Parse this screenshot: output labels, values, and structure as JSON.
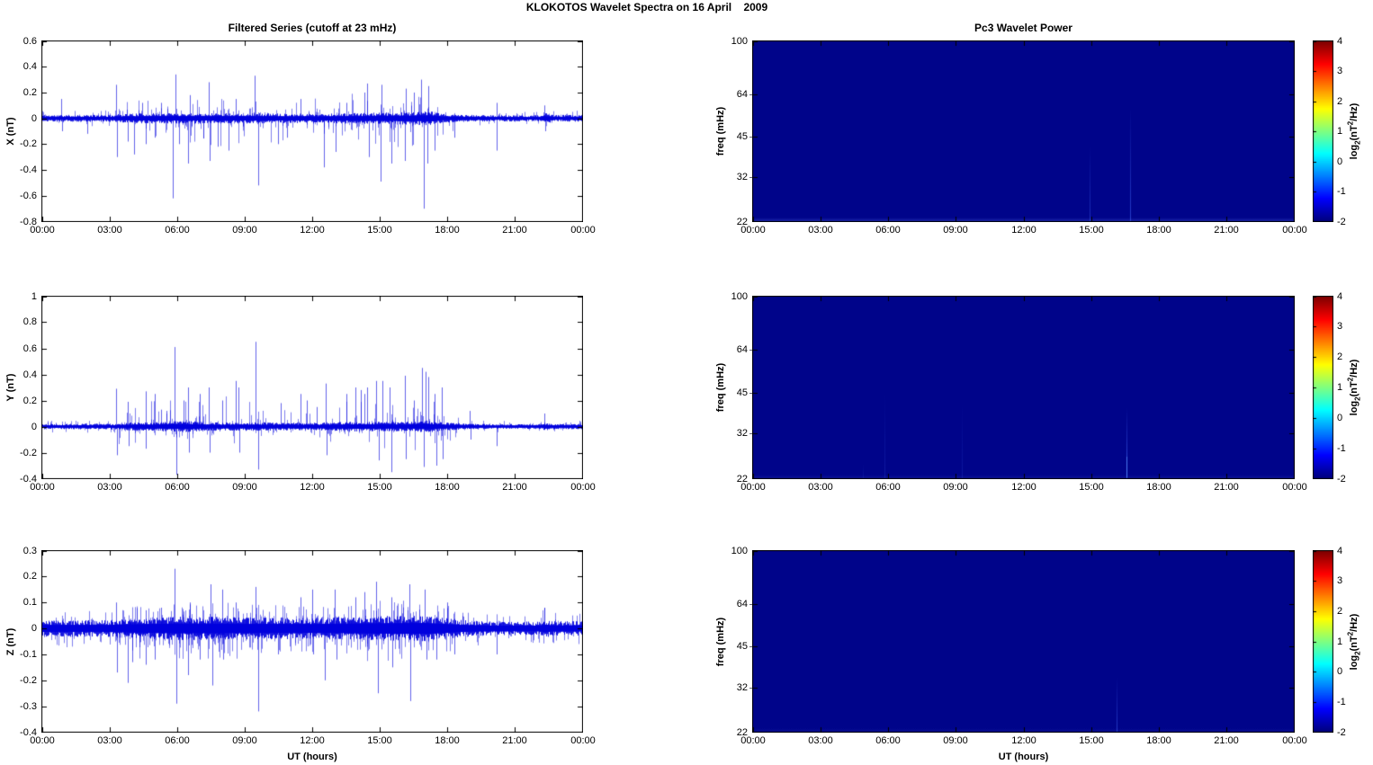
{
  "figure_title": "KLOKOTOS Wavelet Spectra on 16 April    2009",
  "colors": {
    "series_line": "#0000dd",
    "spectrogram_bg": "#00048a",
    "event_line_rgb": [
      70,
      110,
      255
    ],
    "axis": "#000000",
    "text": "#000000",
    "colormap": "jet"
  },
  "time_axis": {
    "ticks": [
      "00:00",
      "03:00",
      "06:00",
      "09:00",
      "12:00",
      "15:00",
      "18:00",
      "21:00",
      "00:00"
    ],
    "hours_span": [
      0,
      24
    ],
    "xlabel": "UT (hours)"
  },
  "activity_profile": [
    [
      0,
      0.02
    ],
    [
      0.7,
      0.12
    ],
    [
      1,
      0.04
    ],
    [
      2,
      0.05
    ],
    [
      3,
      0.3
    ],
    [
      3.6,
      0.8
    ],
    [
      4,
      0.85
    ],
    [
      5,
      0.9
    ],
    [
      6,
      1
    ],
    [
      8,
      0.95
    ],
    [
      10,
      0.65
    ],
    [
      11,
      0.55
    ],
    [
      12,
      0.65
    ],
    [
      13,
      0.8
    ],
    [
      14,
      1
    ],
    [
      16,
      1
    ],
    [
      17,
      1
    ],
    [
      17.6,
      0.65
    ],
    [
      18,
      0.4
    ],
    [
      18.7,
      0.22
    ],
    [
      19,
      0.08
    ],
    [
      20,
      0.05
    ],
    [
      20.3,
      0.08
    ],
    [
      21,
      0.02
    ],
    [
      22,
      0.03
    ],
    [
      22.3,
      0.25
    ],
    [
      22.6,
      0.05
    ],
    [
      23,
      0.02
    ],
    [
      24,
      0.02
    ]
  ],
  "colorbar": {
    "ticks": [
      4,
      3,
      2,
      1,
      0,
      -1,
      -2
    ],
    "clim": [
      -2,
      4
    ],
    "label_parts": {
      "pre": "log",
      "sub": "2",
      "mid": "(nT",
      "sup": "2",
      "post": "/Hz)"
    }
  },
  "chart_data": [
    {
      "id": "x-filtered",
      "type": "line",
      "panel": "left",
      "row": 0,
      "title": "Filtered Series (cutoff at 23 mHz)",
      "ylabel": "X (nT)",
      "ylim": [
        -0.8,
        0.6
      ],
      "yticks": [
        0.6,
        0.4,
        0.2,
        0,
        -0.2,
        -0.4,
        -0.6,
        -0.8
      ],
      "noise_envelope": [
        [
          0,
          0.022
        ],
        [
          3,
          0.023
        ],
        [
          3.6,
          0.03
        ],
        [
          5,
          0.034
        ],
        [
          9,
          0.034
        ],
        [
          12,
          0.03
        ],
        [
          14,
          0.034
        ],
        [
          16,
          0.04
        ],
        [
          17.3,
          0.045
        ],
        [
          17.8,
          0.028
        ],
        [
          19,
          0.022
        ],
        [
          21,
          0.02
        ],
        [
          22.1,
          0.02
        ],
        [
          22.35,
          0.034
        ],
        [
          22.7,
          0.022
        ],
        [
          24,
          0.022
        ]
      ],
      "spikes": [
        [
          0.85,
          0.15
        ],
        [
          0.9,
          -0.1
        ],
        [
          2.0,
          -0.12
        ],
        [
          3.3,
          0.26
        ],
        [
          3.34,
          -0.3
        ],
        [
          3.8,
          -0.18
        ],
        [
          4.1,
          -0.28
        ],
        [
          4.45,
          0.12
        ],
        [
          4.6,
          -0.2
        ],
        [
          5.0,
          -0.15
        ],
        [
          5.3,
          0.12
        ],
        [
          5.82,
          -0.62
        ],
        [
          5.95,
          0.34
        ],
        [
          6.1,
          -0.2
        ],
        [
          6.5,
          -0.35
        ],
        [
          6.55,
          0.18
        ],
        [
          7.4,
          0.28
        ],
        [
          7.46,
          -0.33
        ],
        [
          7.8,
          -0.22
        ],
        [
          8.3,
          -0.25
        ],
        [
          8.6,
          0.15
        ],
        [
          9.45,
          0.33
        ],
        [
          9.6,
          -0.52
        ],
        [
          10.5,
          -0.2
        ],
        [
          10.9,
          -0.15
        ],
        [
          11.5,
          0.15
        ],
        [
          12.5,
          -0.38
        ],
        [
          13.05,
          -0.26
        ],
        [
          13.5,
          0.12
        ],
        [
          14.3,
          0.2
        ],
        [
          14.45,
          0.27
        ],
        [
          14.52,
          -0.3
        ],
        [
          15.03,
          -0.49
        ],
        [
          15.06,
          0.26
        ],
        [
          15.5,
          -0.35
        ],
        [
          16.1,
          -0.33
        ],
        [
          16.16,
          0.23
        ],
        [
          16.5,
          0.2
        ],
        [
          16.85,
          0.3
        ],
        [
          16.95,
          -0.7
        ],
        [
          17.1,
          -0.35
        ],
        [
          17.16,
          0.25
        ],
        [
          17.45,
          -0.25
        ],
        [
          18.3,
          -0.15
        ],
        [
          20.17,
          -0.25
        ],
        [
          20.2,
          0.12
        ],
        [
          22.3,
          0.1
        ],
        [
          22.36,
          -0.1
        ]
      ],
      "minor_spikes": {
        "count": 210,
        "max": 0.2,
        "neg_bias": 0.55,
        "neg_scale": 1.2,
        "whisker": 0.22
      },
      "seed": 11
    },
    {
      "id": "y-filtered",
      "type": "line",
      "panel": "left",
      "row": 1,
      "ylabel": "Y (nT)",
      "ylim": [
        -0.4,
        1
      ],
      "yticks": [
        1,
        0.8,
        0.6,
        0.4,
        0.2,
        0,
        -0.2,
        -0.4
      ],
      "noise_envelope": [
        [
          0,
          0.018
        ],
        [
          3,
          0.019
        ],
        [
          3.6,
          0.024
        ],
        [
          5.5,
          0.032
        ],
        [
          6.5,
          0.036
        ],
        [
          7.5,
          0.026
        ],
        [
          9,
          0.028
        ],
        [
          12,
          0.024
        ],
        [
          14,
          0.032
        ],
        [
          16.5,
          0.03
        ],
        [
          17,
          0.042
        ],
        [
          17.6,
          0.032
        ],
        [
          18.5,
          0.02
        ],
        [
          20,
          0.016
        ],
        [
          22.1,
          0.016
        ],
        [
          22.35,
          0.026
        ],
        [
          22.7,
          0.017
        ],
        [
          24,
          0.017
        ]
      ],
      "spikes": [
        [
          3.3,
          0.29
        ],
        [
          3.33,
          -0.22
        ],
        [
          3.8,
          0.19
        ],
        [
          3.84,
          -0.15
        ],
        [
          4.6,
          0.27
        ],
        [
          4.63,
          -0.17
        ],
        [
          5.0,
          0.25
        ],
        [
          5.3,
          0.13
        ],
        [
          5.55,
          0.12
        ],
        [
          5.9,
          0.61
        ],
        [
          5.96,
          -0.37
        ],
        [
          6.3,
          0.2
        ],
        [
          6.5,
          0.3
        ],
        [
          6.54,
          -0.2
        ],
        [
          7.0,
          0.25
        ],
        [
          7.4,
          0.3
        ],
        [
          7.44,
          -0.2
        ],
        [
          8.0,
          0.2
        ],
        [
          8.6,
          0.35
        ],
        [
          8.72,
          0.3
        ],
        [
          8.78,
          -0.2
        ],
        [
          9.5,
          0.65
        ],
        [
          9.62,
          -0.33
        ],
        [
          10.6,
          0.18
        ],
        [
          11.5,
          0.25
        ],
        [
          11.75,
          0.2
        ],
        [
          12.2,
          0.15
        ],
        [
          12.6,
          0.33
        ],
        [
          12.64,
          -0.22
        ],
        [
          13.5,
          0.25
        ],
        [
          13.9,
          0.3
        ],
        [
          14.15,
          0.28
        ],
        [
          14.3,
          0.25
        ],
        [
          14.45,
          0.3
        ],
        [
          14.85,
          0.35
        ],
        [
          14.95,
          -0.26
        ],
        [
          15.1,
          0.35
        ],
        [
          15.45,
          0.3
        ],
        [
          15.52,
          -0.35
        ],
        [
          16.1,
          0.39
        ],
        [
          16.16,
          -0.25
        ],
        [
          16.5,
          0.2
        ],
        [
          16.88,
          0.45
        ],
        [
          16.94,
          -0.31
        ],
        [
          17.05,
          0.42
        ],
        [
          17.15,
          0.38
        ],
        [
          17.45,
          0.25
        ],
        [
          17.52,
          -0.3
        ],
        [
          17.75,
          0.3
        ],
        [
          17.8,
          -0.25
        ],
        [
          19.0,
          0.12
        ],
        [
          19.04,
          -0.1
        ],
        [
          20.2,
          -0.15
        ],
        [
          22.3,
          0.1
        ]
      ],
      "minor_spikes": {
        "count": 150,
        "max": 0.26,
        "neg_bias": 0.38,
        "neg_scale": 0.7,
        "whisker": 0.18
      },
      "seed": 22
    },
    {
      "id": "z-filtered",
      "type": "line",
      "panel": "left",
      "row": 2,
      "ylabel": "Z (nT)",
      "xlabel": "UT (hours)",
      "ylim": [
        -0.4,
        0.3
      ],
      "yticks": [
        0.3,
        0.2,
        0.1,
        0,
        -0.1,
        -0.2,
        -0.3,
        -0.4
      ],
      "noise_envelope": [
        [
          0,
          0.027
        ],
        [
          3,
          0.027
        ],
        [
          3.6,
          0.031
        ],
        [
          6,
          0.038
        ],
        [
          9,
          0.036
        ],
        [
          12,
          0.034
        ],
        [
          14,
          0.038
        ],
        [
          15,
          0.04
        ],
        [
          17,
          0.042
        ],
        [
          18,
          0.034
        ],
        [
          18.6,
          0.027
        ],
        [
          20,
          0.022
        ],
        [
          22.1,
          0.022
        ],
        [
          22.35,
          0.03
        ],
        [
          22.7,
          0.023
        ],
        [
          24,
          0.023
        ]
      ],
      "spikes": [
        [
          3.3,
          0.1
        ],
        [
          3.33,
          -0.17
        ],
        [
          3.8,
          -0.21
        ],
        [
          4.0,
          -0.13
        ],
        [
          4.6,
          0.07
        ],
        [
          4.63,
          -0.14
        ],
        [
          5.0,
          -0.12
        ],
        [
          5.3,
          0.08
        ],
        [
          5.9,
          0.23
        ],
        [
          5.96,
          -0.29
        ],
        [
          6.5,
          -0.18
        ],
        [
          6.55,
          0.1
        ],
        [
          7.0,
          -0.12
        ],
        [
          7.5,
          0.17
        ],
        [
          7.55,
          -0.22
        ],
        [
          8.0,
          0.15
        ],
        [
          8.05,
          -0.12
        ],
        [
          8.6,
          0.1
        ],
        [
          9.5,
          0.16
        ],
        [
          9.6,
          -0.32
        ],
        [
          10.5,
          -0.1
        ],
        [
          11.5,
          0.12
        ],
        [
          12.0,
          0.15
        ],
        [
          12.05,
          -0.1
        ],
        [
          12.55,
          -0.2
        ],
        [
          13.0,
          0.15
        ],
        [
          13.06,
          -0.12
        ],
        [
          13.9,
          0.12
        ],
        [
          14.3,
          0.14
        ],
        [
          14.85,
          0.18
        ],
        [
          14.92,
          -0.25
        ],
        [
          15.5,
          0.12
        ],
        [
          15.56,
          -0.15
        ],
        [
          16.3,
          0.17
        ],
        [
          16.36,
          -0.28
        ],
        [
          17.0,
          0.15
        ],
        [
          17.06,
          -0.12
        ],
        [
          17.5,
          -0.12
        ],
        [
          18.0,
          0.1
        ],
        [
          18.3,
          -0.1
        ],
        [
          20.2,
          -0.1
        ],
        [
          22.3,
          0.08
        ]
      ],
      "minor_spikes": {
        "count": 420,
        "max": 0.1,
        "neg_bias": 0.52,
        "neg_scale": 1.3,
        "whisker": 0.35
      },
      "seed": 33
    },
    {
      "id": "x-wavelet",
      "type": "heatmap",
      "panel": "right",
      "row": 0,
      "title": "Pc3 Wavelet Power",
      "ylabel": "freq (mHz)",
      "ylim": [
        22,
        100
      ],
      "yscale": "log",
      "yticks": [
        100,
        64,
        45,
        32,
        22
      ],
      "background_value": -2,
      "events": [
        {
          "t": 14.95,
          "f_max": 42,
          "intensity": 0.4
        },
        {
          "t": 16.74,
          "f_max": 58,
          "intensity": 0.55
        }
      ],
      "edge_glow": 0.32,
      "seed": 41
    },
    {
      "id": "y-wavelet",
      "type": "heatmap",
      "panel": "right",
      "row": 1,
      "ylabel": "freq (mHz)",
      "ylim": [
        22,
        100
      ],
      "yscale": "log",
      "yticks": [
        100,
        64,
        45,
        32,
        22
      ],
      "background_value": -2,
      "events": [
        {
          "t": 4.9,
          "f_max": 25,
          "intensity": 0.15
        },
        {
          "t": 5.86,
          "f_max": 46,
          "intensity": 0.2
        },
        {
          "t": 9.25,
          "f_max": 42,
          "intensity": 0.18
        },
        {
          "t": 16.57,
          "f_max": 40,
          "intensity": 0.8
        }
      ],
      "edge_glow": 0.15,
      "seed": 42
    },
    {
      "id": "z-wavelet",
      "type": "heatmap",
      "panel": "right",
      "row": 2,
      "ylabel": "freq (mHz)",
      "xlabel": "UT (hours)",
      "ylim": [
        22,
        100
      ],
      "yscale": "log",
      "yticks": [
        100,
        64,
        45,
        32,
        22
      ],
      "background_value": -2,
      "events": [
        {
          "t": 16.14,
          "f_max": 35,
          "intensity": 0.5
        }
      ],
      "edge_glow": 0.12,
      "seed": 43
    }
  ]
}
